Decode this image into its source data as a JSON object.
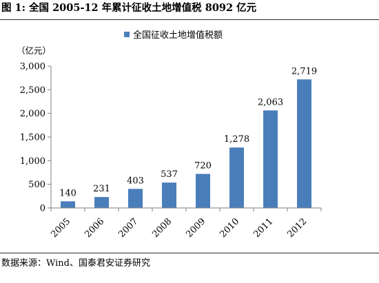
{
  "figure": {
    "title": "图 1:  全国 2005-12 年累计征收土地增值税 8092 亿元",
    "source": "数据来源：Wind、国泰君安证券研究"
  },
  "colors": {
    "bar": "#4a7ebb",
    "axis": "#7f7f7f",
    "rule": "#2b2b2b"
  },
  "chart_data": {
    "type": "bar",
    "categories": [
      "2005",
      "2006",
      "2007",
      "2008",
      "2009",
      "2010",
      "2011",
      "2012"
    ],
    "series": [
      {
        "name": "全国征收土地增值税额",
        "values": [
          140,
          231,
          403,
          537,
          720,
          1278,
          2063,
          2719
        ],
        "value_labels": [
          "140",
          "231",
          "403",
          "537",
          "720",
          "1,278",
          "2,063",
          "2,719"
        ]
      }
    ],
    "ylabel": "（亿元）",
    "ylim": [
      0,
      3000
    ],
    "yticks": [
      0,
      500,
      1000,
      1500,
      2000,
      2500,
      3000
    ],
    "ytick_labels": [
      "0",
      "500",
      "1,000",
      "1,500",
      "2,000",
      "2,500",
      "3,000"
    ],
    "grid": false,
    "legend_position": "top"
  }
}
